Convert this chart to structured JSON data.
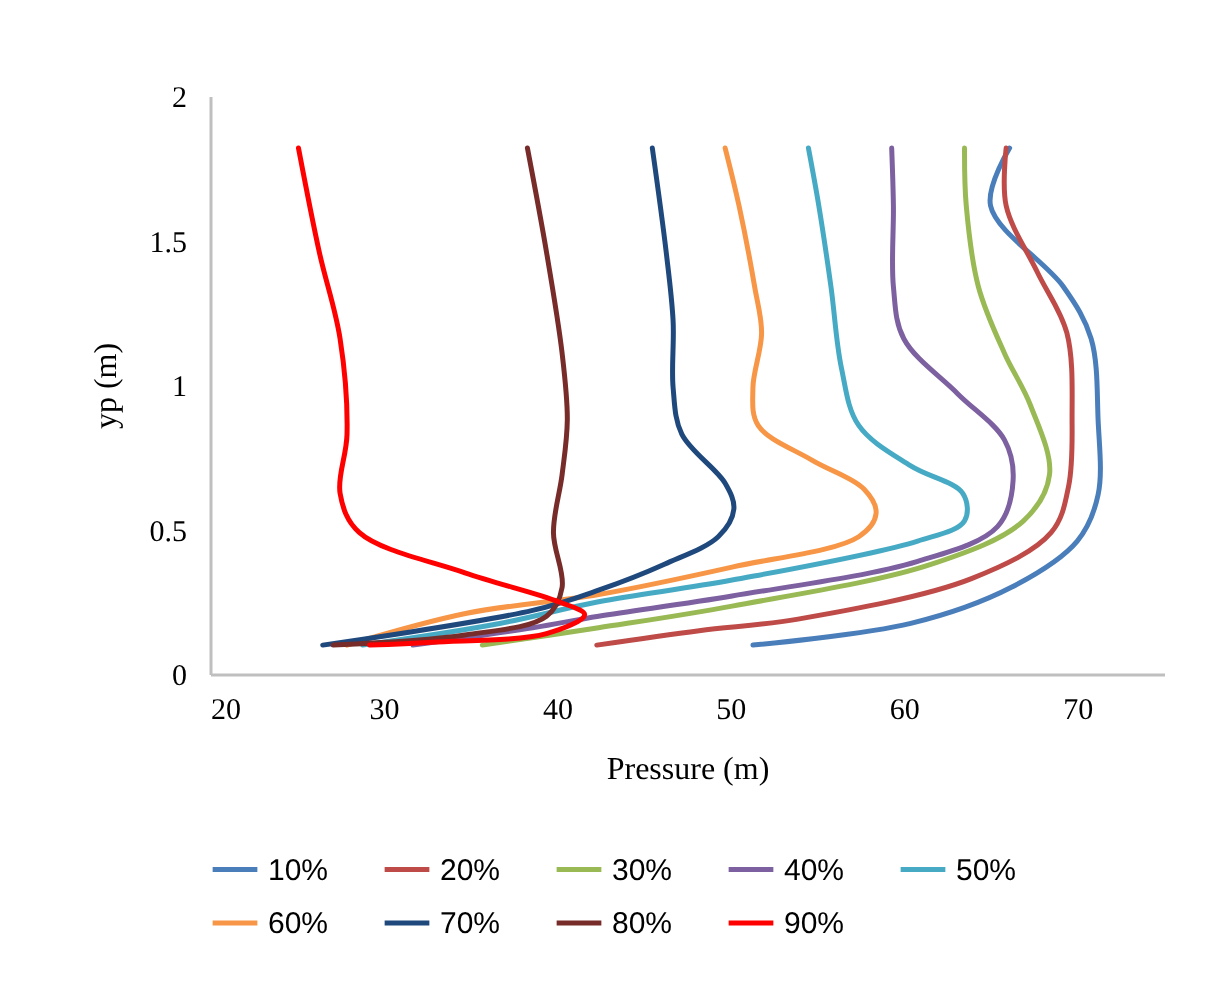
{
  "chart_data": {
    "type": "line",
    "xlabel": "Pressure (m)",
    "ylabel": "yp (m)",
    "xlim": [
      20,
      75
    ],
    "xticks": [
      20,
      30,
      40,
      50,
      60,
      70
    ],
    "ylim": [
      0,
      2
    ],
    "yticks": [
      0,
      0.5,
      1,
      1.5,
      2
    ],
    "legend": "bottom",
    "series": [
      {
        "name": "10%",
        "color": "#4a7ebb",
        "x": [
          51.3,
          60.4,
          66.2,
          70.0,
          71.2,
          71.2,
          70.8,
          69.2,
          65.0,
          66.1
        ],
        "values": [
          0.1,
          0.175,
          0.3,
          0.46,
          0.62,
          0.88,
          1.16,
          1.34,
          1.62,
          1.82
        ]
      },
      {
        "name": "20%",
        "color": "#be4b48",
        "x": [
          42.3,
          48.2,
          53.9,
          63.9,
          68.5,
          69.5,
          69.7,
          69.4,
          67.7,
          65.9,
          65.9
        ],
        "values": [
          0.1,
          0.15,
          0.19,
          0.33,
          0.49,
          0.65,
          0.88,
          1.18,
          1.39,
          1.62,
          1.82
        ]
      },
      {
        "name": "30%",
        "color": "#98b954",
        "x": [
          35.7,
          42.4,
          50.1,
          61.6,
          66.9,
          68.4,
          67.3,
          65.8,
          64.3,
          63.6,
          63.5
        ],
        "values": [
          0.1,
          0.16,
          0.235,
          0.38,
          0.53,
          0.69,
          0.93,
          1.11,
          1.34,
          1.62,
          1.82
        ]
      },
      {
        "name": "40%",
        "color": "#7d60a0",
        "x": [
          31.7,
          38.6,
          42.4,
          50.1,
          60.8,
          65.4,
          66.3,
          65.8,
          63.1,
          60.0,
          59.4,
          59.4,
          59.3
        ],
        "values": [
          0.1,
          0.16,
          0.2,
          0.27,
          0.39,
          0.51,
          0.67,
          0.81,
          0.97,
          1.16,
          1.34,
          1.62,
          1.82
        ]
      },
      {
        "name": "50%",
        "color": "#46aac5",
        "x": [
          28.8,
          36.7,
          42.4,
          50.1,
          60.8,
          63.5,
          63.4,
          60.4,
          57.4,
          56.4,
          55.8,
          55.1,
          54.5
        ],
        "values": [
          0.1,
          0.175,
          0.25,
          0.325,
          0.46,
          0.53,
          0.625,
          0.72,
          0.86,
          1.06,
          1.34,
          1.62,
          1.82
        ]
      },
      {
        "name": "60%",
        "color": "#f79646",
        "x": [
          27.9,
          34.8,
          42.4,
          50.1,
          57.4,
          58.4,
          57.7,
          54.7,
          51.6,
          51.3,
          51.8,
          51.4,
          50.5,
          49.7
        ],
        "values": [
          0.1,
          0.21,
          0.275,
          0.37,
          0.475,
          0.555,
          0.64,
          0.74,
          0.86,
          0.99,
          1.18,
          1.34,
          1.62,
          1.82
        ]
      },
      {
        "name": "70%",
        "color": "#1f497d",
        "x": [
          26.5,
          38.6,
          42.4,
          46.2,
          49.3,
          50.2,
          49.7,
          47.2,
          46.7,
          46.7,
          46.3,
          45.5
        ],
        "values": [
          0.1,
          0.22,
          0.29,
          0.38,
          0.475,
          0.57,
          0.66,
          0.83,
          0.99,
          1.22,
          1.46,
          1.82
        ]
      },
      {
        "name": "80%",
        "color": "#772c2a",
        "x": [
          27.1,
          34.7,
          39.4,
          40.3,
          39.8,
          40.3,
          40.6,
          40.3,
          39.4,
          38.3
        ],
        "values": [
          0.1,
          0.135,
          0.2,
          0.3,
          0.49,
          0.69,
          0.88,
          1.11,
          1.46,
          1.82
        ]
      },
      {
        "name": "90%",
        "color": "#ff0000",
        "x": [
          29.2,
          32.8,
          39.4,
          41.6,
          40.1,
          34.7,
          28.6,
          27.5,
          27.9,
          27.5,
          26.3,
          25.1
        ],
        "values": [
          0.1,
          0.11,
          0.14,
          0.205,
          0.25,
          0.35,
          0.49,
          0.625,
          0.83,
          1.16,
          1.46,
          1.82
        ]
      }
    ]
  }
}
